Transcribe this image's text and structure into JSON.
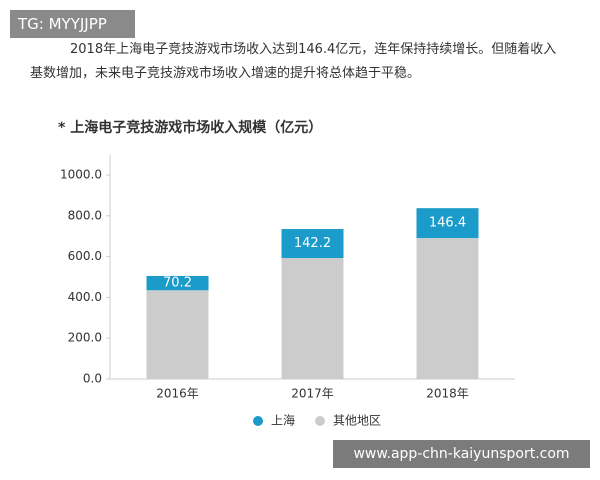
{
  "overlay_tag": "TG: MYYJJPP",
  "paragraph": "2018年上海电子竞技游戏市场收入达到146.4亿元，连年保持持续增长。但随着收入基数增加，未来电子竞技游戏市场收入增速的提升将总体趋于平稳。",
  "chart_data": {
    "type": "stacked_bar",
    "title": "* 上海电子竞技游戏市场收入规模（亿元）",
    "categories": [
      "2016年",
      "2017年",
      "2018年"
    ],
    "series": [
      {
        "name": "上海",
        "color": "#1b9bc9",
        "values": [
          70.2,
          142.2,
          146.4
        ]
      },
      {
        "name": "其他地区",
        "color": "#cccccc",
        "values": [
          435,
          593,
          691
        ]
      }
    ],
    "ylim": [
      0,
      1000
    ],
    "yticks": [
      {
        "value": 0,
        "label": "0.0"
      },
      {
        "value": 200,
        "label": "200.0"
      },
      {
        "value": 400,
        "label": "400.0"
      },
      {
        "value": 600,
        "label": "600.0"
      },
      {
        "value": 800,
        "label": "800.0"
      },
      {
        "value": 1000,
        "label": "1000.0"
      }
    ]
  },
  "watermark": "www.app-chn-kaiyunsport.com"
}
